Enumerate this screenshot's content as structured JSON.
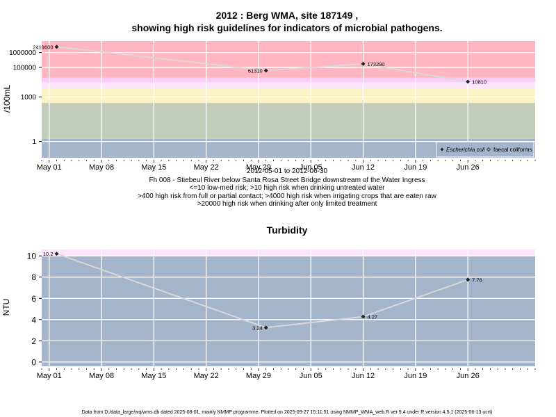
{
  "colors": {
    "band_red": "#ffb6c1",
    "band_pink": "#fbcbf7",
    "band_lavender": "#fde4fd",
    "band_yellow": "#fbf3c3",
    "band_sage": "#c2cdb9",
    "band_blue": "#a3b4cb",
    "turb_pink": "#fde4fd",
    "grid": "#ffffff",
    "line": "#d8d8d8",
    "point": "#222222"
  },
  "x_axis": {
    "ticks": [
      "May 01",
      "May 08",
      "May 15",
      "May 22",
      "May 29",
      "Jun 05",
      "Jun 12",
      "Jun 19",
      "Jun 26"
    ],
    "tick_dates": [
      "2012-05-01",
      "2012-05-08",
      "2012-05-15",
      "2012-05-22",
      "2012-05-29",
      "2012-06-05",
      "2012-06-12",
      "2012-06-19",
      "2012-06-26"
    ],
    "range": [
      "2012-04-30",
      "2012-07-05"
    ]
  },
  "chart_data": [
    {
      "type": "line",
      "title_line1": "2012 : Berg WMA, site 187149 ,",
      "title_line2": "showing high risk guidelines for indicators of microbial pathogens.",
      "ylabel": "/100mL",
      "y_scale": "log",
      "ylim": [
        0.08,
        6000000
      ],
      "y_ticks": [
        {
          "value": 1,
          "label": "1"
        },
        {
          "value": 1000,
          "label": "1000"
        },
        {
          "value": 100000,
          "label": "100000"
        },
        {
          "value": 1000000,
          "label": "1000000"
        }
      ],
      "bands": [
        {
          "from": 0.08,
          "to": 1.5,
          "color": "band_blue"
        },
        {
          "from": 1.5,
          "to": 400,
          "color": "band_sage"
        },
        {
          "from": 400,
          "to": 4000,
          "color": "band_yellow"
        },
        {
          "from": 4000,
          "to": 10000,
          "color": "band_lavender"
        },
        {
          "from": 10000,
          "to": 20000,
          "color": "band_pink"
        },
        {
          "from": 20000,
          "to": 6000000,
          "color": "band_red"
        }
      ],
      "series": [
        {
          "name": "Escherichia coli",
          "x": [
            "2012-05-02",
            "2012-05-30",
            "2012-06-12",
            "2012-06-26"
          ],
          "y": [
            2419600,
            61310,
            173290,
            10810
          ],
          "labels": [
            "2419600",
            "61310",
            "173290",
            "10810"
          ]
        }
      ],
      "legend": {
        "position": "bottom-right",
        "entries": [
          "Escherichia coli",
          "faecal coliforms"
        ]
      },
      "subtitle_lines": [
        "2012-05-01 to 2012-06-30",
        "Fh 008 - Stiebeul River below Santa Rosa Street Bridge downstream of the Water Ingress",
        "<=10 low-med risk; >10 high risk when drinking untreated water",
        ">400 high risk from full or partial contact; >4000 high risk when irrigating crops that are eaten raw",
        ">20000 high risk when drinking after only limited treatment"
      ],
      "grid": true
    },
    {
      "type": "line",
      "title": "Turbidity",
      "ylabel": "NTU",
      "y_scale": "linear",
      "ylim": [
        -0.4,
        10.6
      ],
      "y_ticks": [
        0,
        2,
        4,
        6,
        8,
        10
      ],
      "bands": [
        {
          "from": -0.4,
          "to": 10,
          "color": "band_blue"
        },
        {
          "from": 10,
          "to": 10.6,
          "color": "turb_pink"
        }
      ],
      "series": [
        {
          "x": [
            "2012-05-02",
            "2012-05-30",
            "2012-06-12",
            "2012-06-26"
          ],
          "y": [
            10.2,
            3.24,
            4.27,
            7.76
          ],
          "labels": [
            "10.2",
            "3.24",
            "4.27",
            "7.76"
          ]
        }
      ],
      "grid": true
    }
  ],
  "footer": "Data from D:/data_large/wq/wms.db dated 2025-08-01, mainly NMMP programme. Plotted on 2025-09-27 15:11:51 using NMMP_WMA_web.R ver 9.4 under R version 4.5.1 (2025-06-13 ucrt)"
}
